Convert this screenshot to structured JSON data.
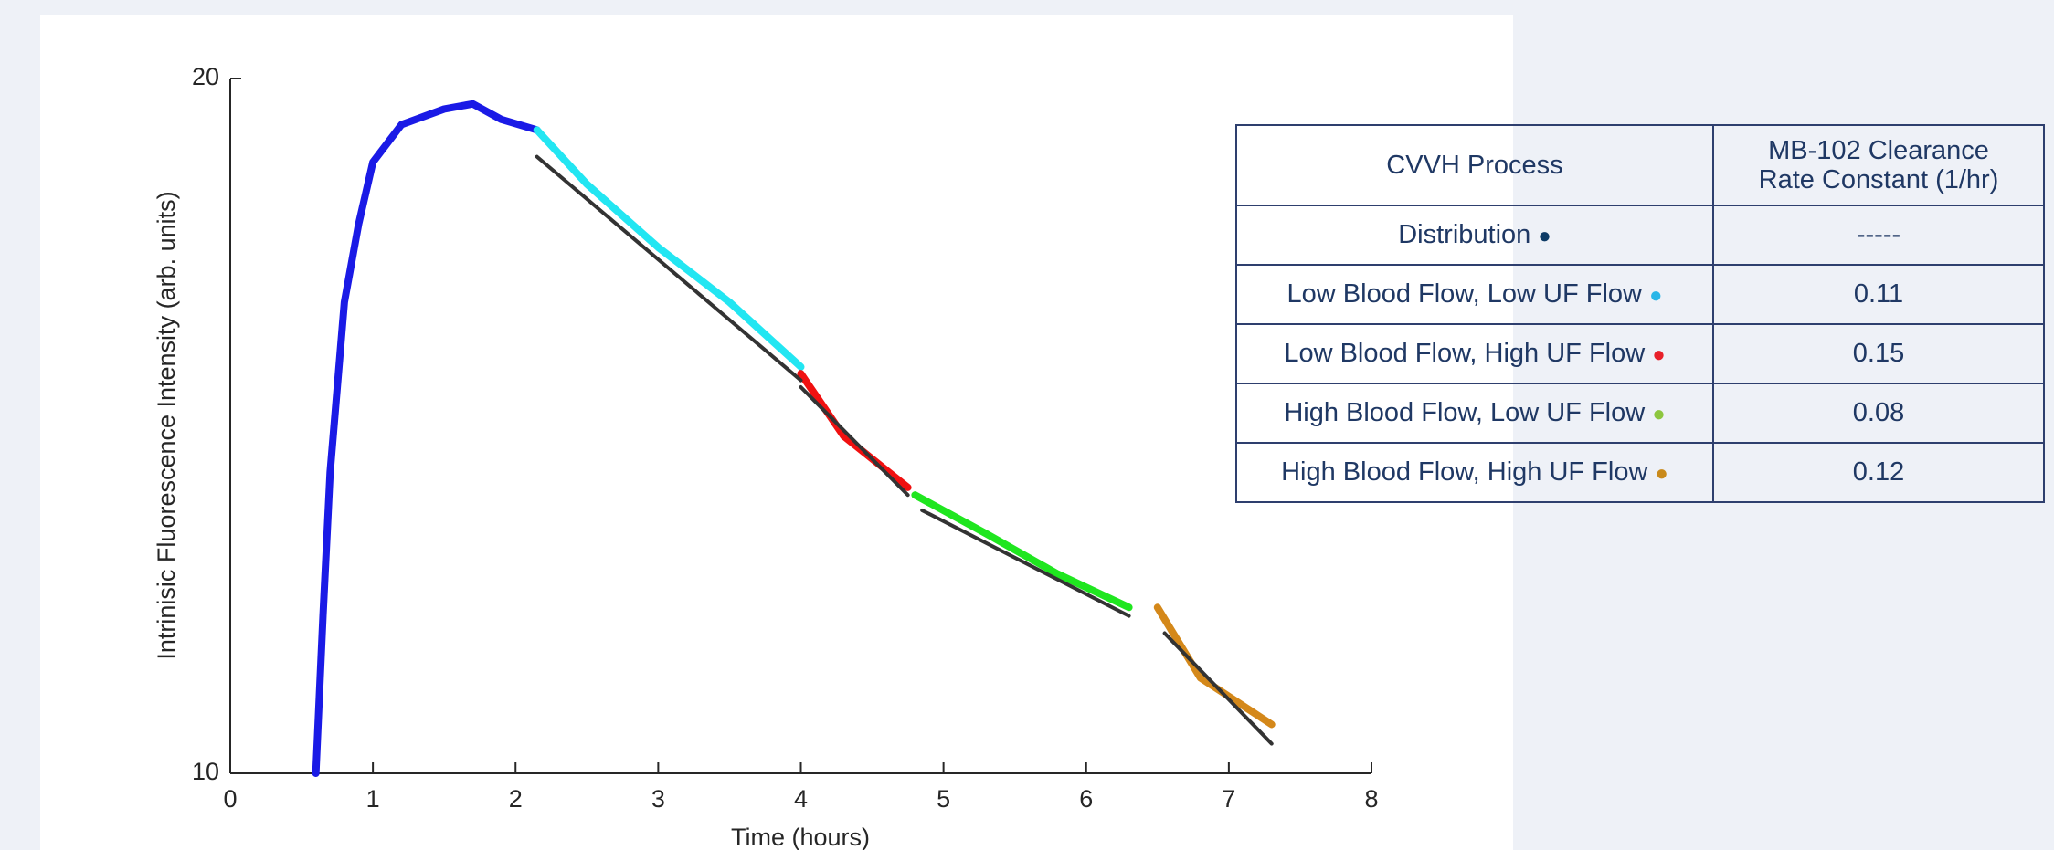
{
  "chart_data": {
    "type": "line",
    "xlabel": "Time (hours)",
    "ylabel": "Intrinisic Fluorescence Intensity (arb. units)",
    "xlim": [
      0,
      8
    ],
    "xticks": [
      0,
      1,
      2,
      3,
      4,
      5,
      6,
      7,
      8
    ],
    "ylim": [
      10,
      20
    ],
    "yticks": [
      10,
      20
    ],
    "yscale": "log",
    "series": [
      {
        "color": "#1a1ae6",
        "x": [
          0.6,
          0.65,
          0.7,
          0.8,
          0.9,
          1.0,
          1.2,
          1.5,
          1.7,
          1.9,
          2.15
        ],
        "values": [
          10,
          11.7,
          13.5,
          16.0,
          17.3,
          18.4,
          19.1,
          19.4,
          19.5,
          19.2,
          19.0
        ]
      },
      {
        "color": "#22e6f2",
        "x": [
          2.15,
          2.5,
          3.0,
          3.5,
          4.0
        ],
        "values": [
          19.0,
          18.0,
          16.9,
          16.0,
          15.0
        ]
      },
      {
        "color": "#f01010",
        "x": [
          4.0,
          4.3,
          4.75
        ],
        "values": [
          14.9,
          14.0,
          13.3
        ]
      },
      {
        "color": "#1fe61f",
        "x": [
          4.8,
          5.3,
          5.8,
          6.3
        ],
        "values": [
          13.2,
          12.7,
          12.2,
          11.8
        ]
      },
      {
        "color": "#d4881a",
        "x": [
          6.5,
          6.8,
          7.3
        ],
        "values": [
          11.8,
          11.0,
          10.5
        ]
      },
      {
        "color": "#333333",
        "x": [
          2.15,
          4.0
        ],
        "values": [
          18.5,
          14.8
        ]
      },
      {
        "color": "#333333",
        "x": [
          4.0,
          4.75
        ],
        "values": [
          14.7,
          13.2
        ]
      },
      {
        "color": "#333333",
        "x": [
          4.85,
          6.3
        ],
        "values": [
          13.0,
          11.7
        ]
      },
      {
        "color": "#333333",
        "x": [
          6.55,
          7.3
        ],
        "values": [
          11.5,
          10.3
        ]
      }
    ]
  },
  "table": {
    "headers": [
      "CVVH Process",
      "MB-102 Clearance Rate Constant (1/hr)"
    ],
    "rows": [
      {
        "label": "Distribution",
        "dot": "#0d3b66",
        "value": "-----"
      },
      {
        "label": "Low Blood Flow, Low UF Flow",
        "dot": "#29b6e8",
        "value": "0.11"
      },
      {
        "label": "Low Blood Flow, High UF Flow",
        "dot": "#e8202a",
        "value": "0.15"
      },
      {
        "label": "High Blood Flow, Low UF Flow",
        "dot": "#8dc63f",
        "value": "0.08"
      },
      {
        "label": "High Blood Flow, High UF Flow",
        "dot": "#c98a1b",
        "value": "0.12"
      }
    ]
  }
}
